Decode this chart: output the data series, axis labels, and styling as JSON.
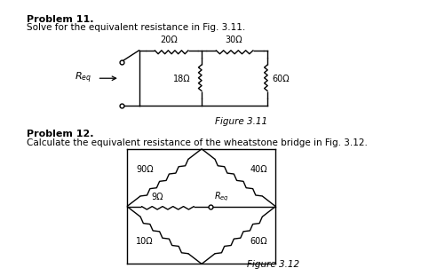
{
  "bg_color": "#ffffff",
  "line_color": "#000000",
  "fig_width": 4.74,
  "fig_height": 3.11,
  "dpi": 100,
  "prob11_title": "Problem 11.",
  "prob11_body": "Solve for the equivalent resistance in Fig. 3.11.",
  "prob12_title": "Problem 12.",
  "prob12_body": "Calculate the equivalent resistance of the wheatstone bridge in Fig. 3.12.",
  "fig311_label": "Figure 3.11",
  "fig312_label": "Figure 3.12",
  "resistors_11": [
    "20Ω",
    "30Ω",
    "18Ω",
    "60Ω"
  ],
  "resistors_12": [
    "90Ω",
    "40Ω",
    "9Ω",
    "10Ω",
    "60Ω"
  ]
}
